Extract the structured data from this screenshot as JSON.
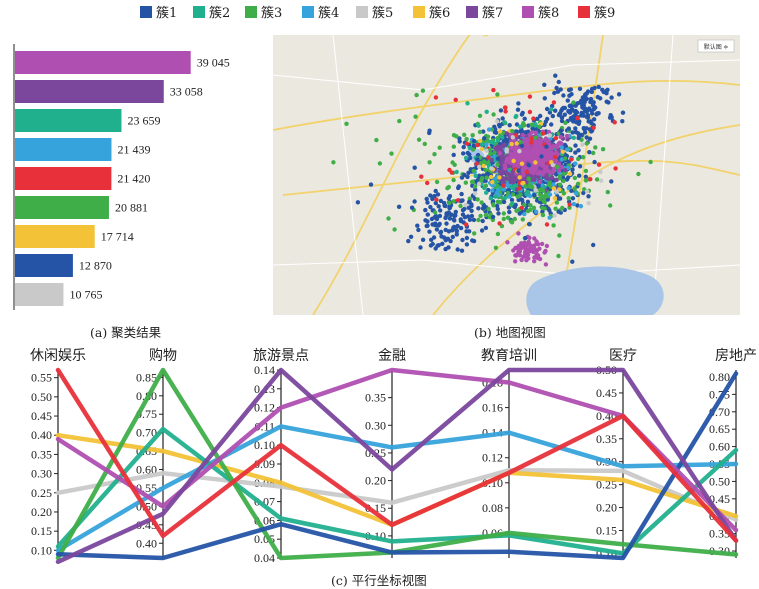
{
  "clusters": [
    {
      "name": "簇1",
      "color": "#2554a6"
    },
    {
      "name": "簇2",
      "color": "#21b08e"
    },
    {
      "name": "簇3",
      "color": "#3fae49"
    },
    {
      "name": "簇4",
      "color": "#37a3dc"
    },
    {
      "name": "簇5",
      "color": "#c9c9c9"
    },
    {
      "name": "簇6",
      "color": "#f3c237"
    },
    {
      "name": "簇7",
      "color": "#7b479d"
    },
    {
      "name": "簇8",
      "color": "#b04fb2"
    },
    {
      "name": "簇9",
      "color": "#e8303a"
    }
  ],
  "captions": {
    "a": "(a) 聚类结果",
    "b": "(b) 地图视图",
    "c": "(c) 平行坐标视图"
  },
  "map": {
    "control_label": "默认图 ≑"
  },
  "chart_data": [
    {
      "type": "bar",
      "orientation": "horizontal",
      "title": "(a) 聚类结果",
      "categories": [
        "簇8",
        "簇7",
        "簇2",
        "簇4",
        "簇9",
        "簇3",
        "簇6",
        "簇1",
        "簇5"
      ],
      "values": [
        39045,
        33058,
        23659,
        21439,
        21420,
        20881,
        17714,
        12870,
        10765
      ],
      "value_labels": [
        "39 045",
        "33 058",
        "23 659",
        "21 439",
        "21 420",
        "20 881",
        "17 714",
        "12 870",
        "10 765"
      ],
      "xlim": [
        0,
        40000
      ]
    },
    {
      "type": "line",
      "subtype": "parallel-coordinates",
      "title": "(c) 平行坐标视图",
      "axes": [
        {
          "label": "休闲娱乐",
          "min": 0.08,
          "max": 0.57,
          "ticks": [
            "0.10",
            "0.15",
            "0.20",
            "0.25",
            "0.30",
            "0.35",
            "0.40",
            "0.45",
            "0.50",
            "0.55"
          ],
          "tick_values": [
            0.1,
            0.15,
            0.2,
            0.25,
            0.3,
            0.35,
            0.4,
            0.45,
            0.5,
            0.55
          ]
        },
        {
          "label": "购物",
          "min": 0.36,
          "max": 0.87,
          "ticks": [
            "0.40",
            "0.45",
            "0.50",
            "0.55",
            "0.60",
            "0.65",
            "0.70",
            "0.75",
            "0.80",
            "0.85"
          ],
          "tick_values": [
            0.4,
            0.45,
            0.5,
            0.55,
            0.6,
            0.65,
            0.7,
            0.75,
            0.8,
            0.85
          ]
        },
        {
          "label": "旅游景点",
          "min": 0.04,
          "max": 0.14,
          "ticks": [
            "0.04",
            "0.05",
            "0.06",
            "0.07",
            "0.08",
            "0.09",
            "0.10",
            "0.11",
            "0.12",
            "0.13",
            "0.14"
          ],
          "tick_values": [
            0.04,
            0.05,
            0.06,
            0.07,
            0.08,
            0.09,
            0.1,
            0.11,
            0.12,
            0.13,
            0.14
          ]
        },
        {
          "label": "金融",
          "min": 0.06,
          "max": 0.4,
          "ticks": [
            "0.10",
            "0.15",
            "0.20",
            "0.25",
            "0.30",
            "0.35"
          ],
          "tick_values": [
            0.1,
            0.15,
            0.2,
            0.25,
            0.3,
            0.35
          ]
        },
        {
          "label": "教育培训",
          "min": 0.04,
          "max": 0.19,
          "ticks": [
            "0.06",
            "0.08",
            "0.10",
            "0.12",
            "0.14",
            "0.16",
            "0.18"
          ],
          "tick_values": [
            0.06,
            0.08,
            0.1,
            0.12,
            0.14,
            0.16,
            0.18
          ]
        },
        {
          "label": "医疗",
          "min": 0.09,
          "max": 0.5,
          "ticks": [
            "0.10",
            "0.15",
            "0.20",
            "0.25",
            "0.30",
            "0.35",
            "0.40",
            "0.45",
            "0.50"
          ],
          "tick_values": [
            0.1,
            0.15,
            0.2,
            0.25,
            0.3,
            0.35,
            0.4,
            0.45,
            0.5
          ]
        },
        {
          "label": "房地产",
          "min": 0.28,
          "max": 0.82,
          "ticks": [
            "0.30",
            "0.35",
            "0.40",
            "0.45",
            "0.50",
            "0.55",
            "0.60",
            "0.65",
            "0.70",
            "0.75",
            "0.80"
          ],
          "tick_values": [
            0.3,
            0.35,
            0.4,
            0.45,
            0.5,
            0.55,
            0.6,
            0.65,
            0.7,
            0.75,
            0.8
          ]
        }
      ],
      "series": [
        {
          "name": "簇5",
          "values": [
            0.25,
            0.59,
            0.078,
            0.16,
            0.11,
            0.28,
            0.39
          ]
        },
        {
          "name": "簇6",
          "values": [
            0.4,
            0.65,
            0.08,
            0.12,
            0.108,
            0.26,
            0.4
          ]
        },
        {
          "name": "簇4",
          "values": [
            0.1,
            0.55,
            0.11,
            0.26,
            0.14,
            0.29,
            0.55
          ]
        },
        {
          "name": "簇2",
          "values": [
            0.11,
            0.71,
            0.061,
            0.09,
            0.058,
            0.1,
            0.59
          ]
        },
        {
          "name": "簇3",
          "values": [
            0.08,
            0.87,
            0.04,
            0.07,
            0.06,
            0.12,
            0.29
          ]
        },
        {
          "name": "簇1",
          "values": [
            0.09,
            0.36,
            0.058,
            0.07,
            0.045,
            0.09,
            0.81
          ]
        },
        {
          "name": "簇8",
          "values": [
            0.39,
            0.5,
            0.12,
            0.4,
            0.18,
            0.4,
            0.36
          ]
        },
        {
          "name": "簇7",
          "values": [
            0.07,
            0.48,
            0.14,
            0.22,
            0.19,
            0.5,
            0.33
          ]
        },
        {
          "name": "簇9",
          "values": [
            0.57,
            0.42,
            0.1,
            0.12,
            0.108,
            0.4,
            0.33
          ]
        }
      ]
    }
  ]
}
